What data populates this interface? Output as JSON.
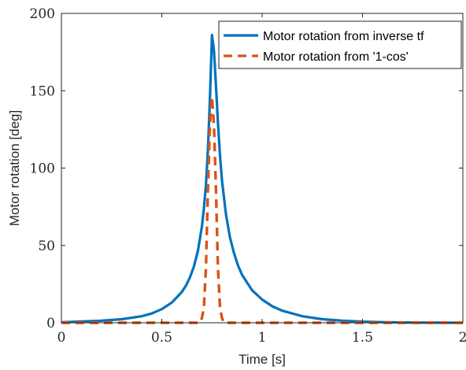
{
  "chart_data": {
    "type": "line",
    "xlabel": "Time [s]",
    "ylabel": "Motor rotation [deg]",
    "xlim": [
      0,
      2
    ],
    "ylim": [
      0,
      200
    ],
    "xticks": [
      0,
      0.5,
      1,
      1.5,
      2
    ],
    "xtick_labels": [
      "0",
      "0.5",
      "1",
      "1.5",
      "2"
    ],
    "yticks": [
      0,
      50,
      100,
      150,
      200
    ],
    "ytick_labels": [
      "0",
      "50",
      "100",
      "150",
      "200"
    ],
    "grid": false,
    "legend_position": "top-right",
    "series": [
      {
        "name": "Motor rotation from inverse tf",
        "color": "#0072BD",
        "style": "solid",
        "x": [
          0,
          0.1,
          0.2,
          0.3,
          0.4,
          0.45,
          0.5,
          0.55,
          0.6,
          0.62,
          0.64,
          0.66,
          0.68,
          0.7,
          0.71,
          0.72,
          0.73,
          0.74,
          0.75,
          0.76,
          0.77,
          0.78,
          0.79,
          0.8,
          0.82,
          0.84,
          0.86,
          0.88,
          0.9,
          0.95,
          1.0,
          1.05,
          1.1,
          1.2,
          1.3,
          1.4,
          1.5,
          1.6,
          1.7,
          1.8,
          1.9,
          2.0
        ],
        "y": [
          0.3,
          0.8,
          1.3,
          2.3,
          4.2,
          6.0,
          8.8,
          13.1,
          19.9,
          23.9,
          29.2,
          36.3,
          46.4,
          62.2,
          73.7,
          89.0,
          111.0,
          145.0,
          186.0,
          176.0,
          153.0,
          129.0,
          108.0,
          92.0,
          70.0,
          55.0,
          45.0,
          37.0,
          31.0,
          21.0,
          15.0,
          10.7,
          7.8,
          4.2,
          2.3,
          1.3,
          0.7,
          0.4,
          0.2,
          0.1,
          0.05,
          0.0
        ]
      },
      {
        "name": "Motor rotation from '1-cos'",
        "color": "#D95319",
        "style": "dashed",
        "x": [
          0,
          0.5,
          0.69,
          0.7,
          0.71,
          0.72,
          0.73,
          0.74,
          0.75,
          0.76,
          0.77,
          0.78,
          0.79,
          0.8,
          0.81,
          1.0,
          1.5,
          2.0
        ],
        "y": [
          0,
          0,
          0,
          3.0,
          10.0,
          35.0,
          85.0,
          128.0,
          146.0,
          128.0,
          85.0,
          35.0,
          10.0,
          3.0,
          0,
          0,
          0,
          0
        ]
      }
    ]
  }
}
